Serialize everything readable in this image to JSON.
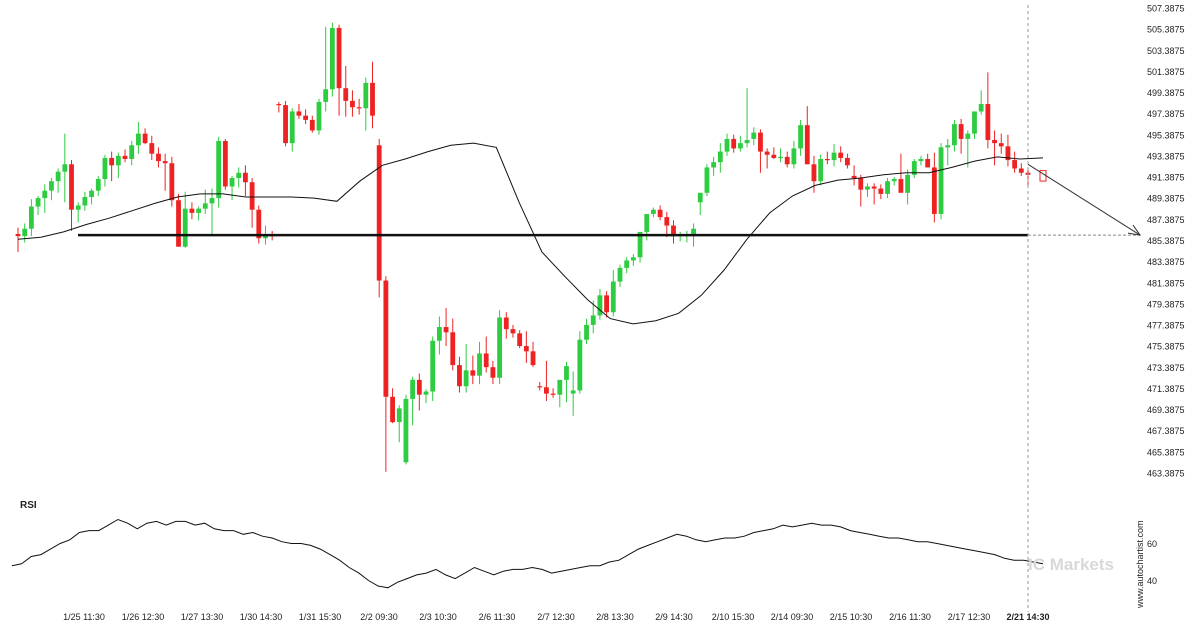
{
  "chart_data": [
    {
      "type": "candlestick",
      "panel": "price",
      "y_ticks": [
        "507.3875",
        "505.3875",
        "503.3875",
        "501.3875",
        "499.3875",
        "497.3875",
        "495.3875",
        "493.3875",
        "491.3875",
        "489.3875",
        "487.3875",
        "485.3875",
        "483.3875",
        "481.3875",
        "479.3875",
        "477.3875",
        "475.3875",
        "473.3875",
        "471.3875",
        "469.3875",
        "467.3875",
        "465.3875",
        "463.3875"
      ],
      "ylim": [
        462.0,
        507.8
      ],
      "x_ticks": [
        "1/25 11:30",
        "1/26 12:30",
        "1/27 13:30",
        "1/30 14:30",
        "1/31 15:30",
        "2/2 09:30",
        "2/3 10:30",
        "2/6 11:30",
        "2/7 12:30",
        "2/8 13:30",
        "2/9 14:30",
        "2/10 15:30",
        "2/14 09:30",
        "2/15 10:30",
        "2/16 11:30",
        "2/17 12:30",
        "2/21 14:30"
      ],
      "highlighted_x_tick": "2/21 14:30",
      "support_level": 485.9,
      "forecast_target": 485.9,
      "grid": false,
      "colors": {
        "up": "#2ecc40",
        "down": "#ee2222",
        "line": "#111111",
        "forecast": "#333333"
      },
      "candles_ohlc": [
        [
          486.0,
          486.6,
          484.3,
          485.8
        ],
        [
          485.8,
          487.0,
          485.2,
          486.5
        ],
        [
          486.5,
          489.3,
          485.8,
          488.6
        ],
        [
          488.6,
          489.6,
          487.8,
          489.4
        ],
        [
          489.4,
          490.7,
          488.0,
          490.1
        ],
        [
          490.1,
          491.3,
          489.2,
          491.0
        ],
        [
          491.0,
          492.2,
          489.9,
          491.9
        ],
        [
          491.9,
          495.5,
          489.0,
          492.6
        ],
        [
          492.6,
          493.0,
          486.3,
          488.3
        ],
        [
          488.3,
          489.0,
          487.1,
          488.7
        ],
        [
          488.7,
          490.0,
          488.2,
          489.5
        ],
        [
          489.5,
          490.3,
          488.8,
          490.1
        ],
        [
          490.1,
          491.5,
          489.6,
          491.2
        ],
        [
          491.2,
          493.5,
          490.5,
          493.2
        ],
        [
          493.2,
          493.8,
          491.0,
          492.5
        ],
        [
          492.5,
          493.7,
          491.3,
          493.4
        ],
        [
          493.4,
          494.0,
          492.8,
          493.1
        ],
        [
          493.1,
          494.8,
          492.5,
          494.4
        ],
        [
          494.4,
          496.6,
          493.6,
          495.5
        ],
        [
          495.5,
          496.0,
          494.5,
          494.6
        ],
        [
          494.6,
          495.3,
          493.0,
          493.6
        ],
        [
          493.6,
          494.2,
          492.3,
          492.9
        ],
        [
          492.9,
          493.6,
          490.1,
          492.7
        ],
        [
          492.7,
          493.3,
          488.6,
          489.2
        ],
        [
          489.2,
          489.8,
          484.8,
          484.8
        ],
        [
          484.8,
          490.0,
          484.7,
          488.4
        ],
        [
          488.4,
          489.0,
          487.4,
          488.0
        ],
        [
          488.0,
          488.6,
          487.3,
          488.4
        ],
        [
          488.4,
          490.2,
          487.9,
          488.9
        ],
        [
          488.9,
          490.3,
          485.9,
          489.4
        ],
        [
          489.4,
          495.2,
          488.5,
          494.8
        ],
        [
          494.8,
          495.0,
          490.2,
          490.5
        ],
        [
          490.5,
          491.5,
          489.2,
          491.3
        ],
        [
          491.3,
          492.3,
          490.4,
          491.8
        ],
        [
          491.8,
          492.5,
          489.6,
          490.9
        ],
        [
          490.9,
          491.3,
          486.6,
          488.3
        ],
        [
          488.3,
          488.7,
          485.1,
          485.6
        ],
        [
          485.6,
          486.8,
          485.0,
          485.9
        ],
        [
          485.9,
          486.3,
          485.4,
          485.8
        ],
        [
          498.3,
          498.5,
          497.5,
          498.2
        ],
        [
          498.2,
          498.6,
          494.3,
          494.6
        ],
        [
          494.6,
          497.9,
          493.8,
          497.6
        ],
        [
          497.6,
          498.3,
          496.9,
          497.2
        ],
        [
          497.2,
          497.8,
          496.4,
          496.8
        ],
        [
          496.8,
          497.2,
          495.6,
          495.8
        ],
        [
          495.8,
          498.8,
          495.4,
          498.5
        ],
        [
          498.5,
          505.6,
          497.6,
          499.7
        ],
        [
          499.7,
          506.0,
          499.0,
          505.5
        ],
        [
          505.5,
          505.8,
          497.2,
          499.8
        ],
        [
          499.8,
          501.9,
          497.1,
          498.6
        ],
        [
          498.6,
          499.6,
          497.1,
          498.0
        ],
        [
          498.0,
          498.8,
          497.3,
          497.9
        ],
        [
          497.9,
          500.8,
          495.8,
          500.3
        ],
        [
          500.3,
          502.3,
          496.0,
          497.2
        ],
        [
          494.4,
          495.0,
          480.0,
          481.6
        ],
        [
          481.6,
          482.0,
          463.5,
          470.6
        ],
        [
          470.6,
          471.4,
          468.1,
          468.2
        ],
        [
          468.2,
          469.8,
          466.3,
          469.5
        ],
        [
          464.4,
          470.8,
          464.2,
          470.4
        ],
        [
          470.4,
          472.5,
          467.9,
          472.2
        ],
        [
          472.2,
          472.8,
          469.3,
          470.8
        ],
        [
          470.8,
          471.3,
          470.0,
          471.1
        ],
        [
          471.1,
          476.3,
          470.2,
          475.9
        ],
        [
          475.9,
          478.2,
          474.6,
          477.2
        ],
        [
          477.2,
          479.0,
          475.4,
          476.7
        ],
        [
          476.7,
          478.0,
          473.1,
          473.6
        ],
        [
          473.6,
          474.4,
          471.0,
          471.6
        ],
        [
          471.6,
          475.6,
          471.0,
          473.1
        ],
        [
          473.1,
          474.5,
          471.8,
          472.6
        ],
        [
          472.6,
          475.8,
          471.8,
          474.7
        ],
        [
          474.7,
          476.3,
          472.9,
          473.4
        ],
        [
          473.4,
          474.0,
          471.8,
          472.4
        ],
        [
          472.4,
          478.8,
          471.8,
          478.1
        ],
        [
          478.1,
          478.6,
          476.1,
          477.0
        ],
        [
          477.0,
          477.4,
          476.2,
          476.6
        ],
        [
          476.6,
          476.9,
          475.2,
          475.4
        ],
        [
          475.4,
          476.8,
          473.8,
          474.9
        ],
        [
          474.9,
          475.8,
          473.4,
          473.6
        ],
        [
          471.6,
          472.0,
          471.2,
          471.5
        ],
        [
          471.5,
          474.0,
          470.2,
          470.9
        ],
        [
          470.9,
          471.4,
          470.5,
          470.8
        ],
        [
          470.8,
          472.0,
          469.6,
          472.2
        ],
        [
          472.2,
          473.9,
          470.1,
          473.5
        ],
        [
          470.9,
          473.0,
          468.8,
          471.2
        ],
        [
          471.2,
          476.8,
          470.9,
          476.0
        ],
        [
          476.0,
          478.0,
          475.6,
          477.4
        ],
        [
          477.4,
          479.7,
          476.6,
          478.3
        ],
        [
          478.3,
          480.8,
          477.9,
          480.2
        ],
        [
          480.2,
          480.6,
          478.1,
          478.6
        ],
        [
          478.6,
          482.6,
          478.2,
          481.5
        ],
        [
          481.5,
          483.1,
          481.0,
          482.8
        ],
        [
          482.8,
          483.8,
          482.3,
          483.5
        ],
        [
          483.5,
          484.1,
          483.0,
          483.8
        ],
        [
          483.8,
          486.0,
          483.3,
          486.2
        ],
        [
          486.2,
          487.8,
          485.4,
          487.9
        ],
        [
          487.9,
          488.5,
          487.6,
          488.3
        ],
        [
          488.3,
          488.7,
          487.3,
          487.6
        ],
        [
          487.6,
          488.1,
          485.7,
          486.8
        ],
        [
          486.8,
          487.3,
          485.1,
          485.8
        ],
        [
          485.8,
          486.2,
          485.3,
          486.0
        ],
        [
          485.8,
          486.3,
          485.2,
          486.0
        ],
        [
          486.0,
          487.0,
          484.8,
          486.5
        ],
        [
          489.0,
          489.6,
          487.8,
          489.9
        ],
        [
          489.9,
          492.6,
          489.6,
          492.3
        ],
        [
          492.3,
          493.3,
          491.5,
          492.8
        ],
        [
          492.8,
          494.6,
          491.8,
          493.8
        ],
        [
          493.8,
          495.5,
          493.4,
          495.0
        ],
        [
          495.0,
          495.4,
          493.7,
          494.1
        ],
        [
          494.1,
          495.3,
          493.8,
          494.6
        ],
        [
          494.6,
          499.8,
          494.2,
          494.9
        ],
        [
          495.0,
          496.1,
          494.4,
          495.6
        ],
        [
          495.6,
          495.9,
          491.8,
          493.8
        ],
        [
          493.8,
          494.1,
          492.2,
          493.5
        ],
        [
          493.5,
          494.2,
          493.1,
          493.2
        ],
        [
          493.2,
          494.1,
          492.8,
          493.3
        ],
        [
          493.3,
          493.8,
          492.3,
          492.6
        ],
        [
          492.6,
          494.8,
          492.2,
          494.1
        ],
        [
          494.1,
          496.8,
          493.4,
          496.3
        ],
        [
          496.3,
          498.1,
          492.6,
          492.6
        ],
        [
          492.6,
          493.4,
          489.9,
          491.0
        ],
        [
          491.0,
          493.5,
          490.6,
          493.1
        ],
        [
          493.1,
          493.8,
          492.6,
          493.0
        ],
        [
          493.0,
          494.5,
          492.4,
          493.7
        ],
        [
          493.7,
          494.3,
          492.8,
          493.2
        ],
        [
          493.2,
          493.6,
          492.2,
          492.5
        ],
        [
          491.5,
          492.5,
          490.6,
          491.3
        ],
        [
          491.3,
          491.6,
          488.6,
          490.2
        ],
        [
          490.2,
          490.8,
          489.5,
          490.5
        ],
        [
          490.5,
          490.8,
          488.8,
          490.3
        ],
        [
          490.3,
          490.7,
          489.3,
          489.8
        ],
        [
          489.8,
          491.3,
          489.4,
          491.0
        ],
        [
          491.0,
          491.4,
          490.6,
          491.2
        ],
        [
          491.2,
          493.6,
          490.2,
          489.9
        ],
        [
          489.9,
          492.1,
          488.8,
          491.6
        ],
        [
          491.6,
          493.1,
          491.3,
          492.9
        ],
        [
          492.9,
          493.4,
          492.5,
          493.1
        ],
        [
          493.1,
          493.6,
          492.6,
          492.3
        ],
        [
          492.3,
          493.7,
          487.1,
          487.9
        ],
        [
          487.9,
          494.6,
          487.4,
          494.2
        ],
        [
          494.2,
          495.0,
          492.5,
          494.4
        ],
        [
          494.4,
          496.8,
          493.8,
          496.4
        ],
        [
          496.4,
          496.9,
          493.6,
          495.0
        ],
        [
          495.0,
          495.8,
          492.3,
          495.5
        ],
        [
          495.5,
          496.8,
          495.0,
          497.6
        ],
        [
          497.6,
          499.6,
          497.3,
          498.3
        ],
        [
          498.3,
          501.3,
          494.1,
          494.9
        ],
        [
          494.9,
          495.8,
          492.5,
          494.6
        ],
        [
          494.6,
          495.5,
          493.6,
          494.3
        ],
        [
          494.3,
          495.4,
          492.4,
          493.0
        ],
        [
          493.0,
          493.8,
          491.8,
          492.2
        ],
        [
          492.2,
          492.7,
          491.5,
          491.8
        ],
        [
          491.8,
          492.2,
          490.6,
          491.6
        ]
      ],
      "ma_values": [
        485.5,
        485.7,
        486.2,
        486.9,
        487.5,
        488.2,
        488.9,
        489.5,
        489.8,
        489.8,
        489.5,
        489.5,
        489.5,
        489.4,
        489.1,
        491.0,
        492.5,
        493.1,
        493.8,
        494.4,
        494.6,
        494.2,
        489.0,
        484.3,
        482.0,
        479.8,
        478.0,
        477.5,
        477.8,
        478.5,
        480.2,
        482.6,
        485.5,
        488.0,
        489.6,
        490.6,
        491.1,
        491.3,
        491.6,
        491.8,
        491.8,
        492.3,
        492.9,
        493.3,
        493.1,
        493.2
      ]
    },
    {
      "type": "line",
      "panel": "rsi",
      "title": "RSI",
      "y_ticks": [
        "60",
        "40"
      ],
      "ylim": [
        24,
        89
      ],
      "values": [
        48,
        49,
        53,
        54,
        57,
        60,
        62,
        66,
        67,
        67,
        70,
        73,
        71,
        68,
        71,
        72,
        70,
        72,
        72,
        70,
        71,
        68,
        67,
        67,
        65,
        66,
        64,
        63,
        61,
        60,
        60,
        59,
        57,
        54,
        51,
        47,
        44,
        40,
        37,
        36,
        39,
        41,
        43,
        44,
        46,
        43,
        41,
        44,
        47,
        45,
        43,
        45,
        46,
        46,
        47,
        46,
        44,
        45,
        46,
        47,
        48,
        48,
        50,
        51,
        54,
        57,
        59,
        61,
        63,
        65,
        64,
        62,
        61,
        62,
        63,
        63,
        64,
        66,
        67,
        68,
        70,
        69,
        70,
        71,
        70,
        70,
        69,
        67,
        66,
        65,
        64,
        63,
        63,
        62,
        61,
        61,
        60,
        59,
        58,
        57,
        56,
        55,
        54,
        52,
        51,
        51,
        50,
        49
      ]
    }
  ],
  "watermark": {
    "brand": "IC Markets",
    "vertical_credit": "www.autochartist.com"
  }
}
